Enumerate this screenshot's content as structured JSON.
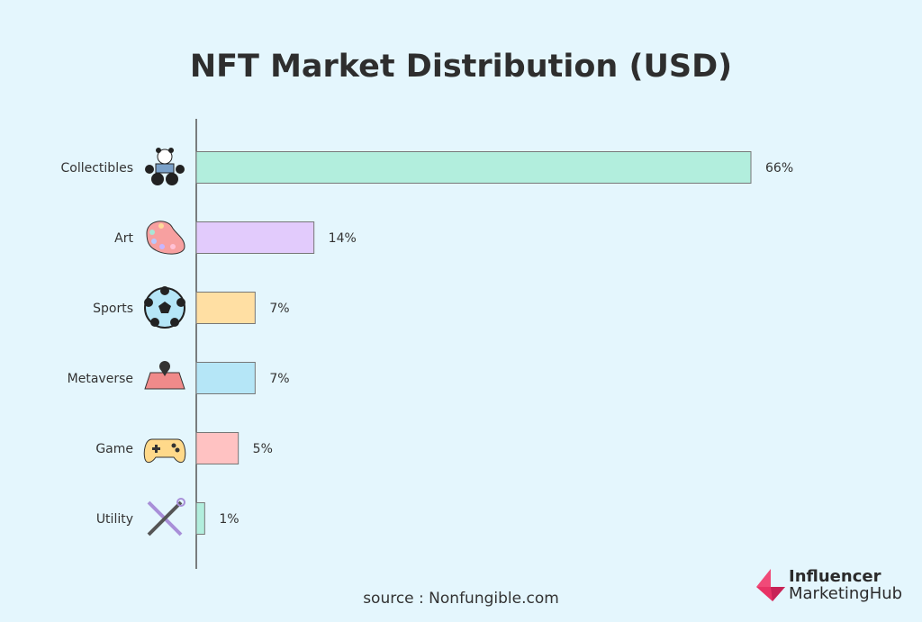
{
  "chart_data": {
    "type": "bar",
    "orientation": "horizontal",
    "title": "NFT Market Distribution (USD)",
    "categories": [
      "Collectibles",
      "Art",
      "Sports",
      "Metaverse",
      "Game",
      "Utility"
    ],
    "values": [
      66,
      14,
      7,
      7,
      5,
      1
    ],
    "labels": [
      "66%",
      "14%",
      "7%",
      "7%",
      "5%",
      "1%"
    ],
    "icons": [
      "panda-icon",
      "palette-icon",
      "soccer-ball-icon",
      "map-pin-icon",
      "gamepad-icon",
      "tools-icon"
    ],
    "colors": [
      "#b2eedd",
      "#e2cbfc",
      "#ffdfa3",
      "#b5e6f7",
      "#ffc2c2",
      "#b2eedd"
    ],
    "unit": "%",
    "xlim": [
      0,
      66
    ],
    "grid": false
  },
  "source": "source : Nonfungible.com",
  "logo": {
    "line1": "Influencer",
    "line2": "MarketingHub"
  }
}
